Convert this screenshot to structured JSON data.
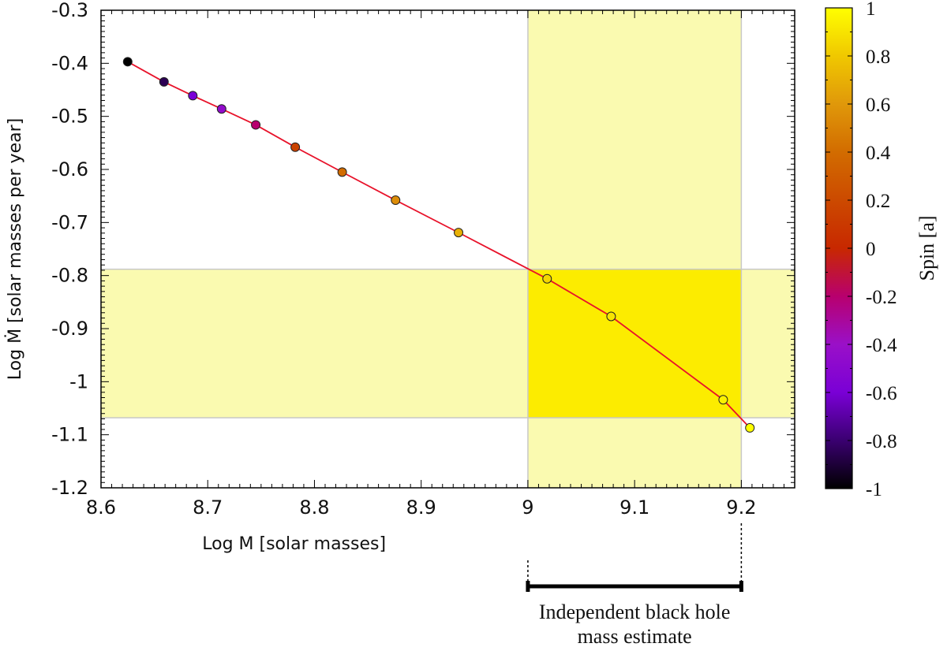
{
  "chart_data": {
    "type": "scatter",
    "xlabel": "Log M   [solar masses]",
    "ylabel": "Log Ṁ   [solar masses per year]",
    "xlim": [
      8.6,
      9.25
    ],
    "ylim": [
      -1.2,
      -0.3
    ],
    "xticks": [
      "8.6",
      "8.7",
      "8.8",
      "8.9",
      "9",
      "9.1",
      "9.2"
    ],
    "yticks": [
      "-1.2",
      "-1.1",
      "-1",
      "-0.9",
      "-0.8",
      "-0.7",
      "-0.6",
      "-0.5",
      "-0.4",
      "-0.3"
    ],
    "grid": false,
    "series": [
      {
        "x": [
          8.625,
          8.659,
          8.686,
          8.713,
          8.745,
          8.782,
          8.826,
          8.876,
          8.935,
          9.018,
          9.078,
          9.183,
          9.208
        ],
        "y": [
          -0.397,
          -0.435,
          -0.461,
          -0.486,
          -0.516,
          -0.558,
          -0.605,
          -0.658,
          -0.719,
          -0.806,
          -0.877,
          -1.034,
          -1.087
        ],
        "spin": [
          -1,
          -0.85,
          -0.6,
          -0.45,
          -0.2,
          0.15,
          0.4,
          0.55,
          0.7,
          0.85,
          0.9,
          0.95,
          1.0
        ]
      }
    ],
    "line_color": "#e8122a",
    "highlight": {
      "x_range": [
        9.0,
        9.2
      ],
      "y_range": [
        -1.068,
        -0.788
      ],
      "band_color": "#fafab0",
      "overlap_color": "#fcec00"
    },
    "colorbar": {
      "title": "Spin  [a]",
      "range": [
        -1,
        1
      ],
      "ticks": [
        "-1",
        "-0.8",
        "-0.6",
        "-0.4",
        "-0.2",
        "0",
        "0.2",
        "0.4",
        "0.6",
        "0.8",
        "1"
      ],
      "colors": [
        "#000000",
        "#3a0070",
        "#7a00d6",
        "#9a10c8",
        "#b8006e",
        "#c82800",
        "#cc4a00",
        "#d26c00",
        "#e0980a",
        "#f0c800",
        "#ffff00"
      ]
    },
    "annotation": {
      "x_range": [
        9.0,
        9.2
      ],
      "lines": [
        "Independent black hole",
        "mass estimate"
      ]
    }
  }
}
